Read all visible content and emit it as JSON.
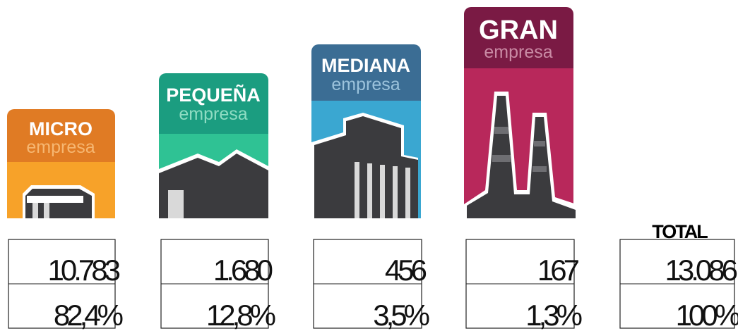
{
  "categories": [
    {
      "title": "MICRO",
      "subtitle": "empresa",
      "count": "10.783",
      "share": "82,4%"
    },
    {
      "title": "PEQUEÑA",
      "subtitle": "empresa",
      "count": "1.680",
      "share": "12,8%"
    },
    {
      "title": "MEDIANA",
      "subtitle": "empresa",
      "count": "456",
      "share": "3,5%"
    },
    {
      "title": "GRAN",
      "subtitle": "empresa",
      "count": "167",
      "share": "1,3%"
    }
  ],
  "total": {
    "title": "TOTAL",
    "count": "13.086",
    "share": "100%"
  }
}
